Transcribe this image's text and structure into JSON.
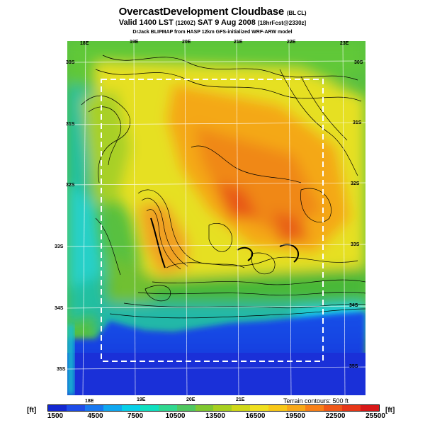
{
  "header": {
    "title": "OvercastDevelopment Cloudbase",
    "title_suffix": "(BL CL)",
    "valid_prefix": "Valid 1400 LST",
    "valid_utc": "(1200Z)",
    "valid_date": "SAT 9 Aug 2008",
    "forecast": "[18hrFcst@2330z]",
    "credit": "DrJack BLIPMAP from HASP 12km GFS-initialized WRF-ARW model"
  },
  "map": {
    "lon_labels": [
      "18E",
      "19E",
      "20E",
      "21E",
      "22E",
      "23E"
    ],
    "lat_labels": [
      "30S",
      "31S",
      "32S",
      "33S",
      "34S",
      "35S"
    ],
    "terrain_note": "Terrain contours: 500 ft",
    "colors": {
      "ocean": "#1a2fd8",
      "low": "#20c0a0",
      "mid": "#e8d820",
      "high": "#f06020",
      "frame": "#ffffff"
    }
  },
  "colorbar": {
    "unit_left": "[ft]",
    "unit_right": "[ft]",
    "ticks": [
      "1500",
      "4500",
      "7500",
      "10500",
      "13500",
      "16500",
      "19500",
      "22500",
      "25500"
    ],
    "colors": [
      "#1428d0",
      "#1e4ce8",
      "#1878f0",
      "#10a8f0",
      "#08d0e8",
      "#10e0c0",
      "#30d890",
      "#50c860",
      "#80c830",
      "#a8d020",
      "#d0d818",
      "#f0e020",
      "#f8c818",
      "#f8a818",
      "#f88018",
      "#f05818",
      "#e83818",
      "#d81818"
    ]
  }
}
